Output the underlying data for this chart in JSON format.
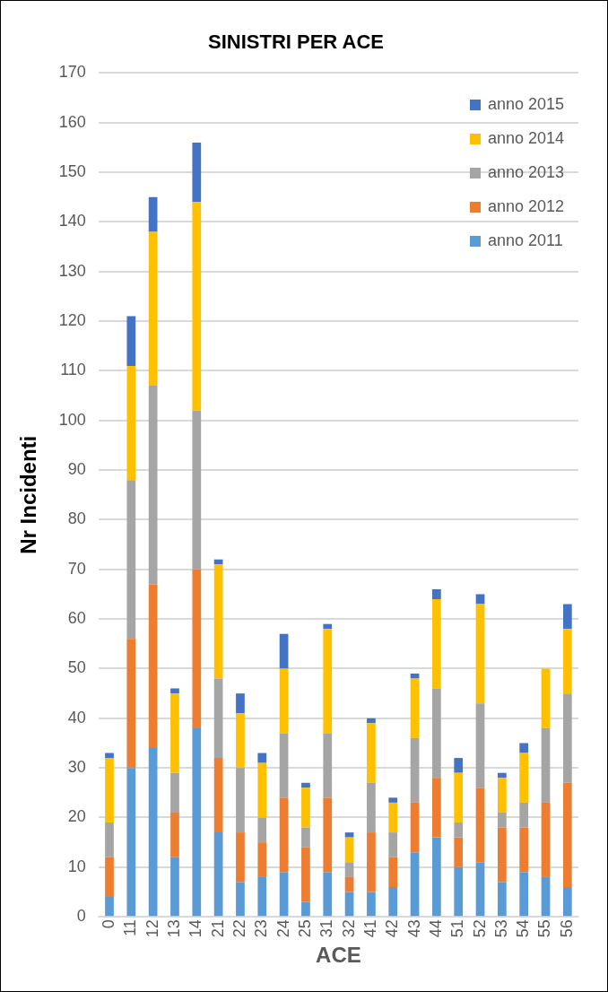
{
  "chart_data": {
    "type": "bar",
    "title": "SINISTRI PER ACE",
    "xlabel": "ACE",
    "ylabel": "Nr Incidenti",
    "categories": [
      "0",
      "11",
      "12",
      "13",
      "14",
      "21",
      "22",
      "23",
      "24",
      "25",
      "31",
      "32",
      "41",
      "42",
      "43",
      "44",
      "51",
      "52",
      "53",
      "54",
      "55",
      "56"
    ],
    "stacked": true,
    "grid": "y",
    "legend": "top right",
    "ylim": [
      0,
      170
    ],
    "yticks": [
      0,
      10,
      20,
      30,
      40,
      50,
      60,
      70,
      80,
      90,
      100,
      110,
      120,
      130,
      140,
      150,
      160,
      170
    ],
    "series": [
      {
        "name": "anno 2011",
        "color": "#5b9bd5",
        "values": [
          4,
          30,
          34,
          12,
          38,
          17,
          7,
          8,
          9,
          3,
          9,
          5,
          5,
          6,
          13,
          16,
          10,
          11,
          7,
          9,
          8,
          6
        ]
      },
      {
        "name": "anno 2012",
        "color": "#ed7d31",
        "values": [
          8,
          26,
          33,
          9,
          32,
          15,
          10,
          7,
          15,
          11,
          15,
          3,
          12,
          6,
          10,
          12,
          6,
          15,
          11,
          9,
          15,
          21
        ]
      },
      {
        "name": "anno 2013",
        "color": "#a5a5a5",
        "values": [
          7,
          32,
          40,
          8,
          32,
          16,
          13,
          5,
          13,
          4,
          13,
          3,
          10,
          5,
          13,
          18,
          3,
          17,
          3,
          5,
          15,
          18
        ]
      },
      {
        "name": "anno 2014",
        "color": "#ffc000",
        "values": [
          13,
          23,
          31,
          16,
          42,
          23,
          11,
          11,
          13,
          8,
          21,
          5,
          12,
          6,
          12,
          18,
          10,
          20,
          7,
          10,
          12,
          13
        ]
      },
      {
        "name": "anno 2015",
        "color": "#4472c4",
        "values": [
          1,
          10,
          7,
          1,
          12,
          1,
          4,
          2,
          7,
          1,
          1,
          1,
          1,
          1,
          1,
          2,
          3,
          2,
          1,
          2,
          0,
          5
        ]
      }
    ]
  }
}
